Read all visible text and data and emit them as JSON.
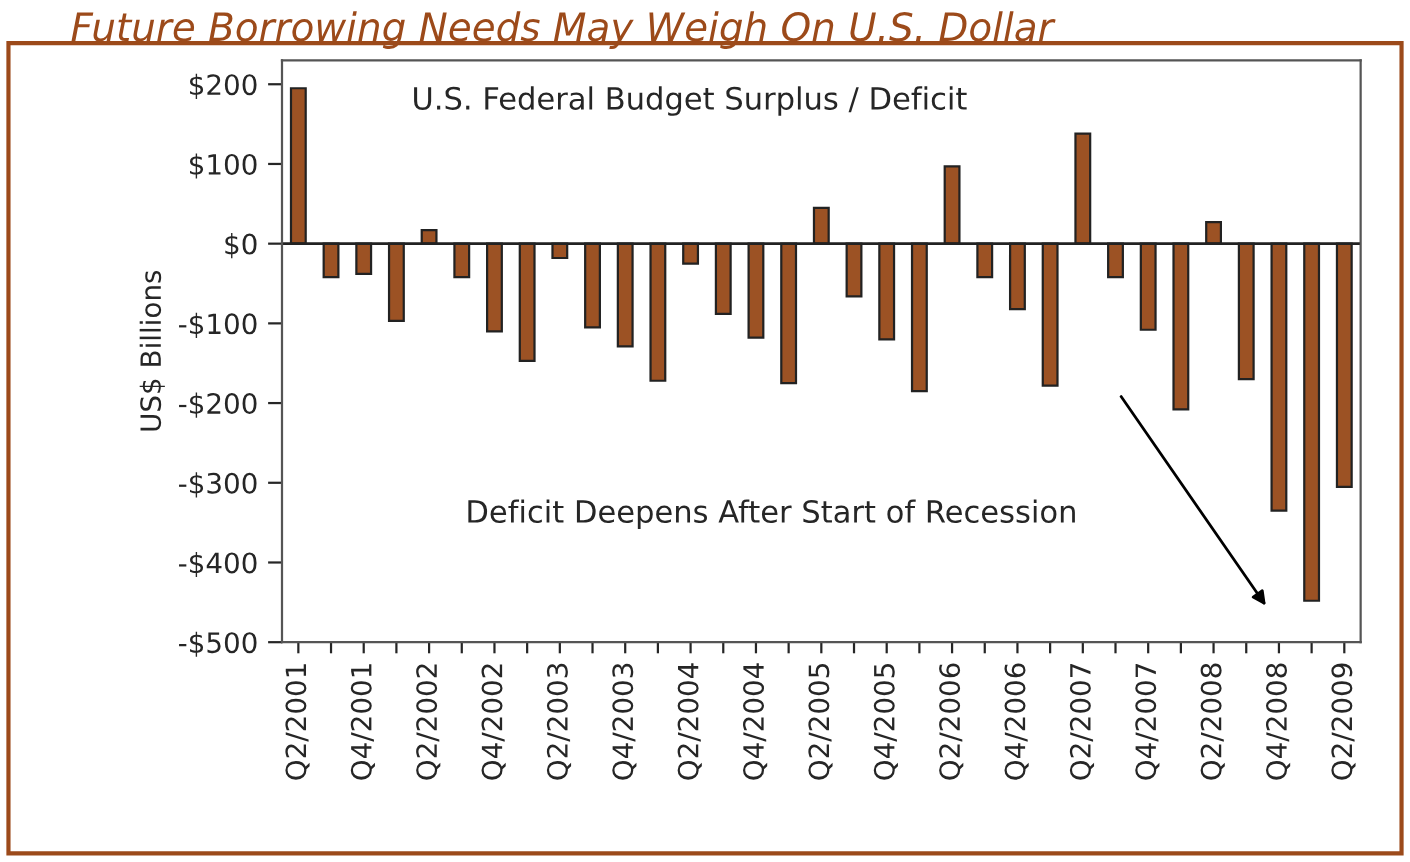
{
  "chart_data": {
    "type": "bar",
    "title": "Future Borrowing Needs May Weigh On U.S. Dollar",
    "ylabel": "US$ Billions",
    "categories": [
      "Q2/2001",
      null,
      "Q4/2001",
      null,
      "Q2/2002",
      null,
      "Q4/2002",
      null,
      "Q2/2003",
      null,
      "Q4/2003",
      null,
      "Q2/2004",
      null,
      "Q4/2004",
      null,
      "Q2/2005",
      null,
      "Q4/2005",
      null,
      "Q2/2006",
      null,
      "Q4/2006",
      null,
      "Q2/2007",
      null,
      "Q4/2007",
      null,
      "Q2/2008",
      null,
      "Q4/2008",
      null,
      "Q2/2009"
    ],
    "values": [
      195,
      -42,
      -38,
      -97,
      17,
      -42,
      -110,
      -147,
      -18,
      -105,
      -129,
      -172,
      -25,
      -88,
      -118,
      -175,
      45,
      -66,
      -120,
      -185,
      97,
      -42,
      -82,
      -178,
      138,
      -42,
      -108,
      -208,
      27,
      -170,
      -335,
      -448,
      -305
    ],
    "color": "#9c5224",
    "ylim": [
      -500,
      230
    ],
    "yticks": [
      {
        "value": 200,
        "label": "$200"
      },
      {
        "value": 100,
        "label": "$100"
      },
      {
        "value": 0,
        "label": "$0"
      },
      {
        "value": -100,
        "label": "-$100"
      },
      {
        "value": -200,
        "label": "-$200"
      },
      {
        "value": -300,
        "label": "-$300"
      },
      {
        "value": -400,
        "label": "-$400"
      },
      {
        "value": -500,
        "label": "-$500"
      }
    ],
    "annotations": [
      "U.S. Federal Budget Surplus / Deficit",
      "Deficit Deepens After Start of Recession"
    ],
    "ref_lines": [
      {
        "axis": "y",
        "value": 0,
        "color": "#222222"
      }
    ],
    "grid": false,
    "legend": false
  }
}
